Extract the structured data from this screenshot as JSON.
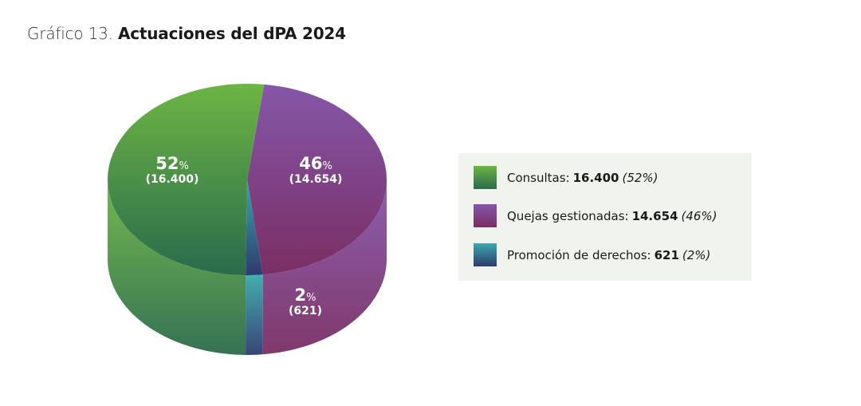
{
  "title": {
    "prefix": "Gráfico 13.",
    "main": "Actuaciones del dPA 2024"
  },
  "chart_data": {
    "type": "pie",
    "title": "Gráfico 13. Actuaciones del dPA 2024",
    "legend_position": "right",
    "series": [
      {
        "name": "Consultas",
        "value": 16400,
        "value_label": "16.400",
        "percent": 52,
        "percent_label": "52",
        "colors": [
          "#6db544",
          "#2a6b4c"
        ]
      },
      {
        "name": "Quejas gestionadas",
        "value": 14654,
        "value_label": "14.654",
        "percent": 46,
        "percent_label": "46",
        "colors": [
          "#8557a9",
          "#7a2e63"
        ]
      },
      {
        "name": "Promoción de derechos",
        "value": 621,
        "value_label": "621",
        "percent": 2,
        "percent_label": "2",
        "colors": [
          "#3aa9ab",
          "#2e3b6e"
        ]
      }
    ],
    "legend": [
      {
        "label": "Consultas:",
        "value": "16.400",
        "pct": "(52%)"
      },
      {
        "label": "Quejas gestionadas:",
        "value": "14.654",
        "pct": "(46%)"
      },
      {
        "label": "Promoción de derechos:",
        "value": "621",
        "pct": "(2%)"
      }
    ],
    "pct_sign": "%"
  }
}
